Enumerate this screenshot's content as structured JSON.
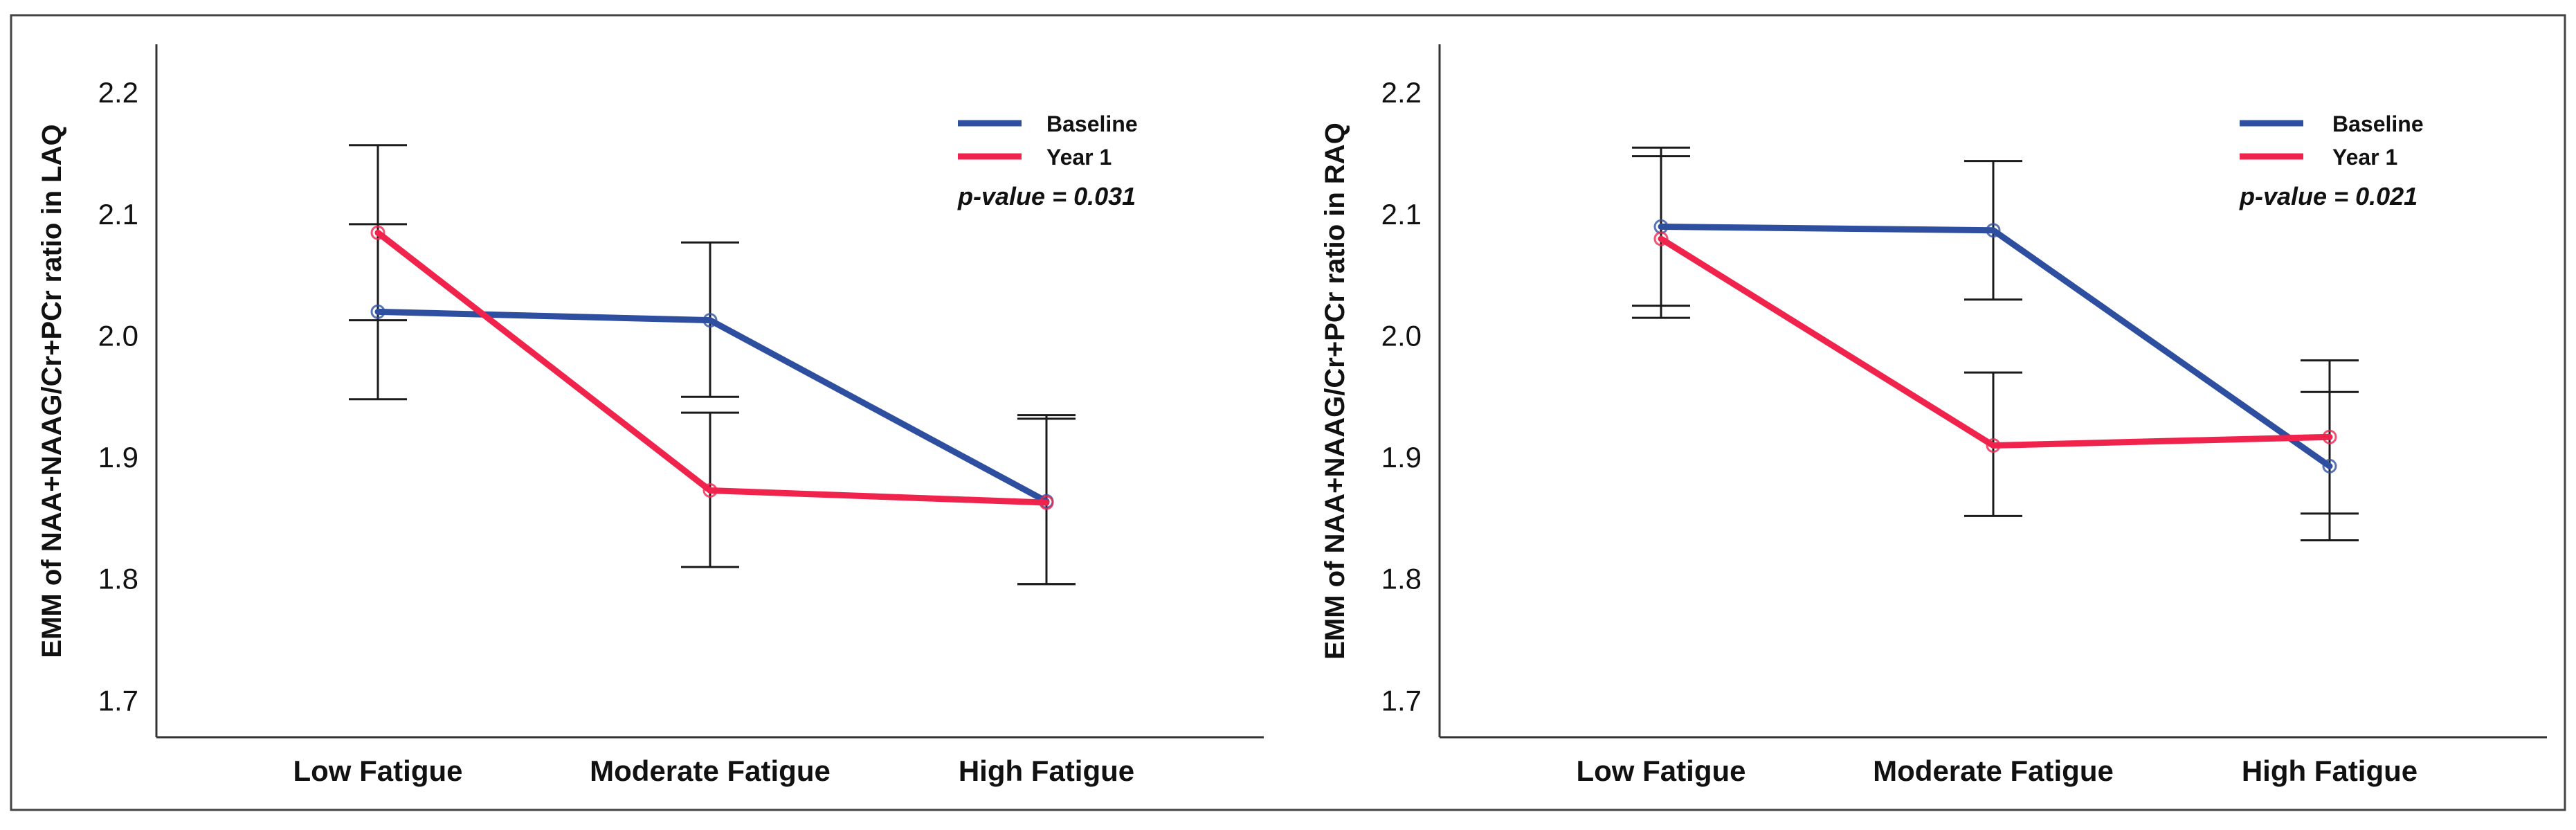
{
  "colors": {
    "baseline": "#2E4FA0",
    "year1": "#F0234C",
    "errorbar": "#1a1a1a",
    "axis": "#333333",
    "border": "#444444"
  },
  "chart_data": [
    {
      "type": "line",
      "ylabel": "EMM of NAA+NAAG/Cr+PCr ratio in LAQ",
      "categories": [
        "Low Fatigue",
        "Moderate Fatigue",
        "High Fatigue"
      ],
      "yticks": [
        "1.7",
        "1.8",
        "1.9",
        "2.0",
        "2.1",
        "2.2"
      ],
      "ylim": [
        1.67,
        2.24
      ],
      "annotation": "p-value = 0.031",
      "legend_position": "top-right",
      "series": [
        {
          "name": "Baseline",
          "color_key": "baseline",
          "values": [
            2.02,
            2.013,
            1.864
          ],
          "err_low": [
            1.948,
            1.95,
            1.796
          ],
          "err_high": [
            2.092,
            2.077,
            1.932
          ]
        },
        {
          "name": "Year 1",
          "color_key": "year1",
          "values": [
            2.085,
            1.873,
            1.863
          ],
          "err_low": [
            2.013,
            1.81,
            1.796
          ],
          "err_high": [
            2.157,
            1.937,
            1.935
          ]
        }
      ]
    },
    {
      "type": "line",
      "ylabel": "EMM of NAA+NAAG/Cr+PCr ratio in RAQ",
      "categories": [
        "Low Fatigue",
        "Moderate Fatigue",
        "High Fatigue"
      ],
      "yticks": [
        "1.7",
        "1.8",
        "1.9",
        "2.0",
        "2.1",
        "2.2"
      ],
      "ylim": [
        1.67,
        2.24
      ],
      "annotation": "p-value = 0.021",
      "legend_position": "top-right",
      "series": [
        {
          "name": "Baseline",
          "color_key": "baseline",
          "values": [
            2.09,
            2.087,
            1.893
          ],
          "err_low": [
            2.025,
            2.03,
            1.832
          ],
          "err_high": [
            2.155,
            2.144,
            1.954
          ]
        },
        {
          "name": "Year 1",
          "color_key": "year1",
          "values": [
            2.08,
            1.91,
            1.917
          ],
          "err_low": [
            2.015,
            1.852,
            1.854
          ],
          "err_high": [
            2.148,
            1.97,
            1.98
          ]
        }
      ]
    }
  ]
}
